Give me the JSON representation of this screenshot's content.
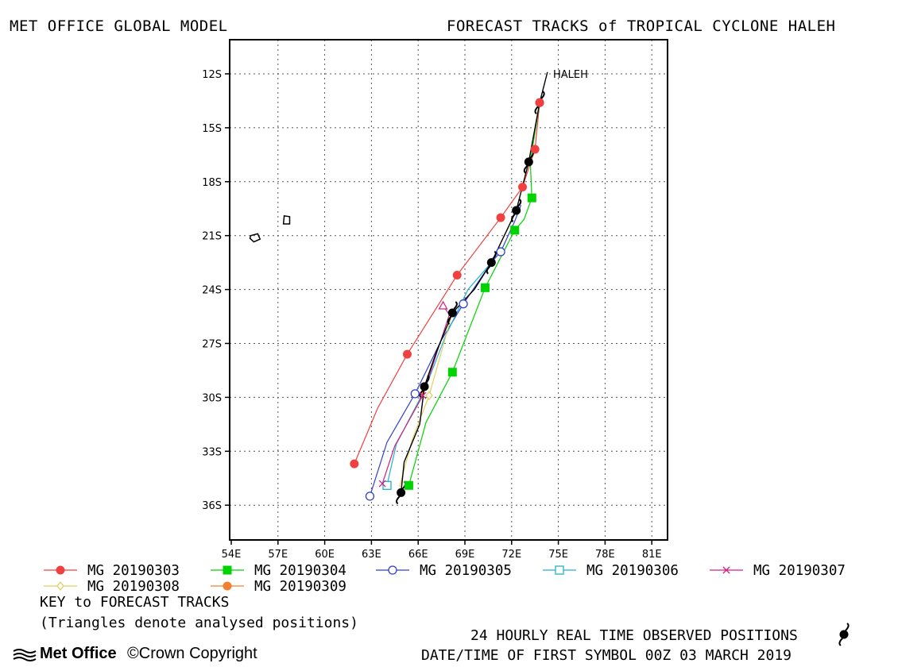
{
  "header": {
    "left_title": "MET OFFICE GLOBAL MODEL",
    "right_title": "FORECAST TRACKS of TROPICAL CYCLONE HALEH"
  },
  "footer": {
    "key_title": "KEY to FORECAST TRACKS",
    "key_note": "(Triangles denote analysed positions)",
    "observed_note": "24 HOURLY REAL TIME OBSERVED POSITIONS",
    "first_symbol_note": "DATE/TIME OF FIRST SYMBOL 00Z 03 MARCH 2019",
    "logo_text": "Met Office",
    "copyright": "Crown Copyright"
  },
  "chart_data": {
    "type": "line",
    "storm_label": "HALEH",
    "x_ticks": [
      "54E",
      "57E",
      "60E",
      "63E",
      "66E",
      "69E",
      "72E",
      "75E",
      "78E",
      "81E"
    ],
    "y_ticks": [
      "12S",
      "15S",
      "18S",
      "21S",
      "24S",
      "27S",
      "30S",
      "33S",
      "36S"
    ],
    "xlim": [
      54,
      82
    ],
    "ylim_south": [
      10,
      38
    ],
    "grid": true,
    "legend": [
      {
        "name": "MG 20190303",
        "color": "#f04040",
        "marker": "circle-filled"
      },
      {
        "name": "MG 20190304",
        "color": "#00d400",
        "marker": "square-filled"
      },
      {
        "name": "MG 20190305",
        "color": "#3040d0",
        "marker": "circle-open"
      },
      {
        "name": "MG 20190306",
        "color": "#20b0d0",
        "marker": "square-open"
      },
      {
        "name": "MG 20190307",
        "color": "#d02080",
        "marker": "x"
      },
      {
        "name": "MG 20190308",
        "color": "#e0d060",
        "marker": "diamond-open"
      },
      {
        "name": "MG 20190309",
        "color": "#f08030",
        "marker": "circle-filled"
      }
    ],
    "series": [
      {
        "name": "MG 20190303",
        "color": "#f04040",
        "marker": "circle-filled",
        "line": [
          [
            73.8,
            13.6
          ],
          [
            73.5,
            16.2
          ],
          [
            72.7,
            18.3
          ],
          [
            71.3,
            20.0
          ],
          [
            68.5,
            23.2
          ],
          [
            65.3,
            27.6
          ],
          [
            63.4,
            30.6
          ],
          [
            61.9,
            33.7
          ]
        ],
        "markers": [
          [
            73.8,
            13.6
          ],
          [
            73.5,
            16.2
          ],
          [
            72.7,
            18.3
          ],
          [
            71.3,
            20.0
          ],
          [
            68.5,
            23.2
          ],
          [
            65.3,
            27.6
          ],
          [
            61.9,
            33.7
          ]
        ]
      },
      {
        "name": "MG 20190304",
        "color": "#00d400",
        "marker": "square-filled",
        "line": [
          [
            73.8,
            13.6
          ],
          [
            73.2,
            16.9
          ],
          [
            73.3,
            18.9
          ],
          [
            72.8,
            20.1
          ],
          [
            72.2,
            20.7
          ],
          [
            70.3,
            23.9
          ],
          [
            68.2,
            28.6
          ],
          [
            66.5,
            31.4
          ],
          [
            65.4,
            34.9
          ]
        ],
        "markers": [
          [
            73.3,
            18.9
          ],
          [
            72.2,
            20.7
          ],
          [
            70.3,
            23.9
          ],
          [
            68.2,
            28.6
          ],
          [
            65.4,
            34.9
          ]
        ]
      },
      {
        "name": "MG 20190305",
        "color": "#3040d0",
        "marker": "circle-open",
        "line": [
          [
            72.6,
            19.3
          ],
          [
            72.2,
            20.2
          ],
          [
            71.3,
            21.9
          ],
          [
            70.7,
            22.5
          ],
          [
            68.9,
            24.8
          ],
          [
            67.5,
            26.8
          ],
          [
            65.8,
            29.8
          ],
          [
            64.0,
            32.5
          ],
          [
            62.9,
            35.5
          ]
        ],
        "markers": [
          [
            71.3,
            21.9
          ],
          [
            68.9,
            24.8
          ],
          [
            65.8,
            29.8
          ],
          [
            62.9,
            35.5
          ]
        ]
      },
      {
        "name": "MG 20190306",
        "color": "#20b0d0",
        "marker": "square-open",
        "line": [
          [
            70.7,
            22.5
          ],
          [
            69.2,
            24.0
          ],
          [
            67.8,
            26.5
          ],
          [
            66.4,
            29.6
          ],
          [
            64.6,
            32.6
          ],
          [
            64.0,
            34.9
          ]
        ],
        "markers": [
          [
            64.0,
            34.9
          ]
        ]
      },
      {
        "name": "MG 20190307",
        "color": "#d02080",
        "marker": "x",
        "line": [
          [
            67.6,
            24.9
          ],
          [
            68.0,
            25.4
          ],
          [
            66.3,
            29.9
          ],
          [
            64.5,
            32.7
          ],
          [
            63.7,
            34.8
          ]
        ],
        "markers": [
          [
            66.3,
            29.9
          ],
          [
            63.7,
            34.8
          ]
        ]
      },
      {
        "name": "MG 20190308",
        "color": "#e0d060",
        "marker": "diamond-open",
        "line": [
          [
            68.2,
            25.3
          ],
          [
            66.7,
            29.9
          ],
          [
            65.6,
            32.4
          ],
          [
            64.8,
            35.0
          ]
        ],
        "markers": [
          [
            66.7,
            29.9
          ]
        ]
      },
      {
        "name": "MG 20190309",
        "color": "#f08030",
        "marker": "circle-filled",
        "line": [
          [
            66.4,
            29.4
          ],
          [
            66.2,
            30.0
          ]
        ],
        "markers": []
      }
    ],
    "observed_track": {
      "color": "#000000",
      "line": [
        [
          74.3,
          11.9
        ],
        [
          73.8,
          13.6
        ],
        [
          73.1,
          16.9
        ],
        [
          72.3,
          19.6
        ],
        [
          70.7,
          22.5
        ],
        [
          69.6,
          24.0
        ],
        [
          68.2,
          25.3
        ],
        [
          67.2,
          27.4
        ],
        [
          66.4,
          29.4
        ],
        [
          66.1,
          31.5
        ],
        [
          65.1,
          33.6
        ],
        [
          64.9,
          35.3
        ]
      ],
      "cyclone_symbols": [
        [
          73.8,
          13.6
        ],
        [
          73.1,
          16.9
        ],
        [
          72.3,
          19.6
        ],
        [
          70.7,
          22.5
        ],
        [
          68.2,
          25.3
        ],
        [
          66.4,
          29.4
        ],
        [
          64.9,
          35.3
        ]
      ]
    },
    "analysed_triangles": [
      {
        "color": "#d02080",
        "x": 67.6,
        "y": 24.9
      }
    ],
    "islands": [
      [
        [
          55.25,
          21.0
        ],
        [
          55.7,
          20.9
        ],
        [
          55.85,
          21.2
        ],
        [
          55.45,
          21.35
        ],
        [
          55.2,
          21.15
        ]
      ],
      [
        [
          57.4,
          19.9
        ],
        [
          57.75,
          19.95
        ],
        [
          57.75,
          20.35
        ],
        [
          57.35,
          20.35
        ]
      ]
    ]
  }
}
